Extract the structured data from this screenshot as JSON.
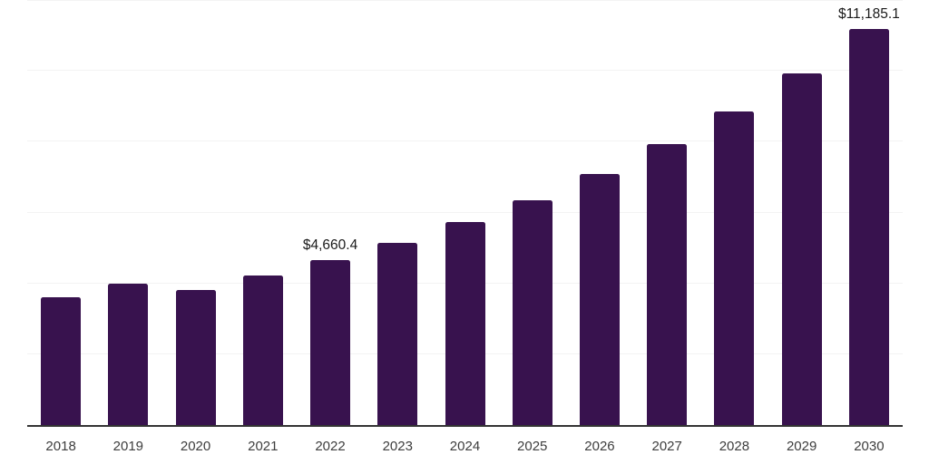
{
  "chart_data": {
    "type": "bar",
    "title": "",
    "xlabel": "",
    "ylabel": "",
    "categories": [
      "2018",
      "2019",
      "2020",
      "2021",
      "2022",
      "2023",
      "2024",
      "2025",
      "2026",
      "2027",
      "2028",
      "2029",
      "2030"
    ],
    "values": [
      3610,
      3990,
      3815,
      4220,
      4660.4,
      5145,
      5730,
      6350,
      7090,
      7930,
      8855,
      9930,
      11185.1
    ],
    "value_labels": [
      {
        "category": "2022",
        "text": "$4,660.4"
      },
      {
        "category": "2030",
        "text": "$11,185.1"
      }
    ],
    "ylim": [
      0,
      12000
    ],
    "gridline_values": [
      2000,
      4000,
      6000,
      8000,
      10000,
      12000
    ],
    "grid": "horizontal",
    "legend_position": "none",
    "y_axis_tick_labels_shown": false,
    "colors": {
      "bar": "#38124E",
      "axis_line": "#333333",
      "gridline": "#F3F3F3",
      "tick_label": "#3D3D3D",
      "value_label": "#1A1A1A",
      "background": "#FFFFFF"
    }
  }
}
